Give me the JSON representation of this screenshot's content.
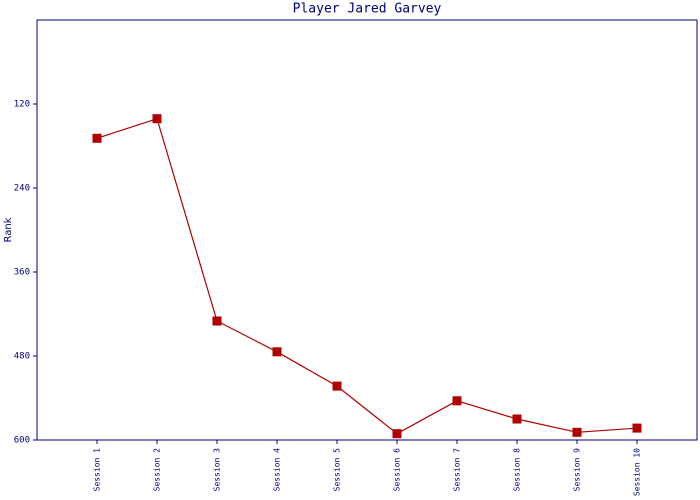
{
  "chart_data": {
    "type": "line",
    "title": "Player Jared Garvey",
    "y_label": "Rank",
    "categories": [
      "Session 1",
      "Session 2",
      "Session 3",
      "Session 4",
      "Session 5",
      "Session 6",
      "Session 7",
      "Session 8",
      "Session 9",
      "Session 10"
    ],
    "series": [
      {
        "name": "Rank",
        "color": "#b00000",
        "values": [
          169,
          141,
          430,
          474,
          523,
          591,
          544,
          570,
          589,
          583
        ]
      }
    ],
    "ylim": [
      600,
      0
    ],
    "yticks": [
      120,
      240,
      360,
      480,
      600
    ],
    "grid": false
  }
}
